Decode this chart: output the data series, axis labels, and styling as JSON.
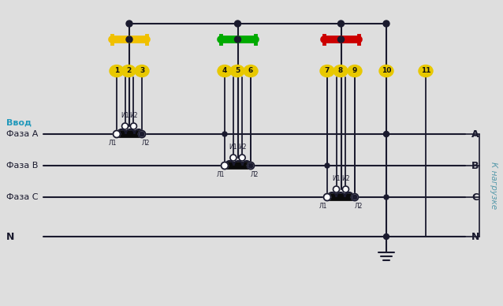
{
  "bg_color": "#dedede",
  "line_color": "#1a1a2e",
  "ct_thick_color": "#0a0a0a",
  "yellow_bar_color": "#f0c000",
  "green_bar_color": "#00aa00",
  "red_bar_color": "#cc0000",
  "terminal_bg": "#e8c800",
  "cyan_text_color": "#2299bb",
  "right_text_color": "#5599aa",
  "label_vvod": "Ввод",
  "label_faza_a": "Фаза A",
  "label_faza_b": "Фаза B",
  "label_faza_c": "Фаза C",
  "label_n": "N",
  "label_right_a": "A",
  "label_right_b": "B",
  "label_right_c": "C",
  "label_right_n": "N",
  "label_k_nagruzke": "К нагрузке",
  "terminals": [
    "1",
    "2",
    "3",
    "4",
    "5",
    "6",
    "7",
    "8",
    "9",
    "10",
    "11"
  ]
}
